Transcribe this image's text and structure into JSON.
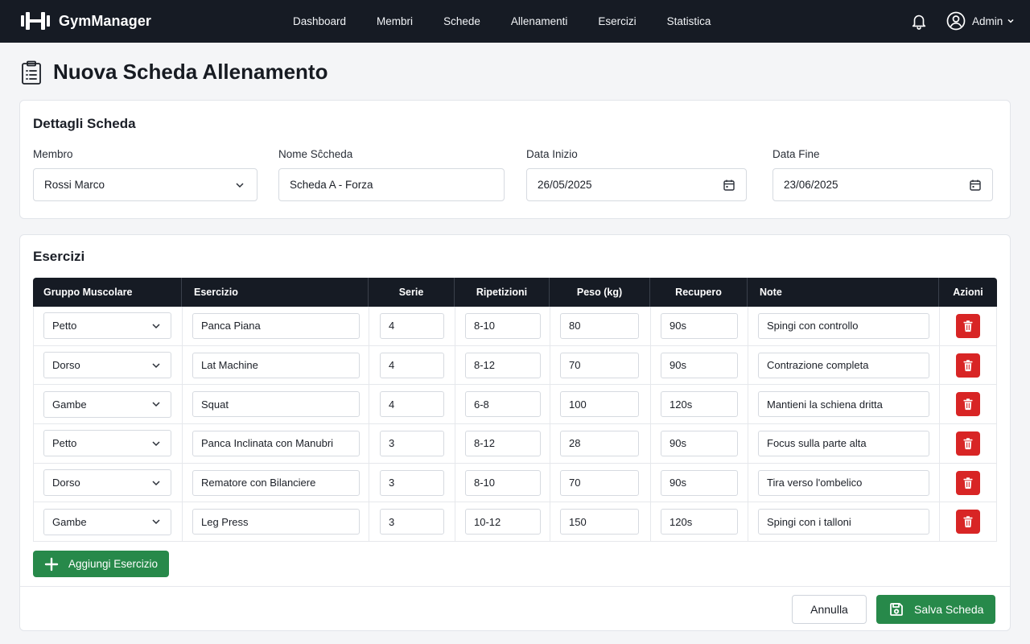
{
  "app": {
    "name": "GymManager"
  },
  "nav": [
    "Dashboard",
    "Membri",
    "Schede",
    "Allenamenti",
    "Esercizi",
    "Statistica"
  ],
  "user": {
    "name": "Admin"
  },
  "page": {
    "title": "Nuova Scheda Allenamento"
  },
  "details": {
    "title": "Dettagli Scheda",
    "member": {
      "label": "Membro",
      "value": "Rossi Marco"
    },
    "plan_name": {
      "label": "Nome Sĉcheda",
      "value": "Scheda A - Forza"
    },
    "start_date": {
      "label": "Data Inizio",
      "value": "26/05/2025"
    },
    "end_date": {
      "label": "Data Fine",
      "value": "23/06/2025"
    }
  },
  "exercises": {
    "title": "Esercizi",
    "columns": [
      "Gruppo Muscolare",
      "Esercizio",
      "Serie",
      "Ripetizioni",
      "Peso (kg)",
      "Recupero",
      "Note",
      "Azioni"
    ],
    "rows": [
      {
        "group": "Petto",
        "exercise": "Panca Piana",
        "sets": "4",
        "reps": "8-10",
        "weight": "80",
        "rest": "90s",
        "note": "Spingi con controllo"
      },
      {
        "group": "Dorso",
        "exercise": "Lat Machine",
        "sets": "4",
        "reps": "8-12",
        "weight": "70",
        "rest": "90s",
        "note": "Contrazione completa"
      },
      {
        "group": "Gambe",
        "exercise": "Squat",
        "sets": "4",
        "reps": "6-8",
        "weight": "100",
        "rest": "120s",
        "note": "Mantieni la schiena dritta"
      },
      {
        "group": "Petto",
        "exercise": "Panca Inclinata con Manubri",
        "sets": "3",
        "reps": "8-12",
        "weight": "28",
        "rest": "90s",
        "note": "Focus sulla parte alta"
      },
      {
        "group": "Dorso",
        "exercise": "Rematore con Bilanciere",
        "sets": "3",
        "reps": "8-10",
        "weight": "70",
        "rest": "90s",
        "note": "Tira verso l'ombelico"
      },
      {
        "group": "Gambe",
        "exercise": "Leg Press",
        "sets": "3",
        "reps": "10-12",
        "weight": "150",
        "rest": "120s",
        "note": "Spingi con i talloni"
      }
    ],
    "add_label": "Aggiungi Esercizio"
  },
  "actions": {
    "cancel_label": "Annulla",
    "save_label": "Salva Scheda"
  },
  "colors": {
    "topbar": "#161b24",
    "primary_green": "#27894a",
    "danger_red": "#d82525"
  }
}
